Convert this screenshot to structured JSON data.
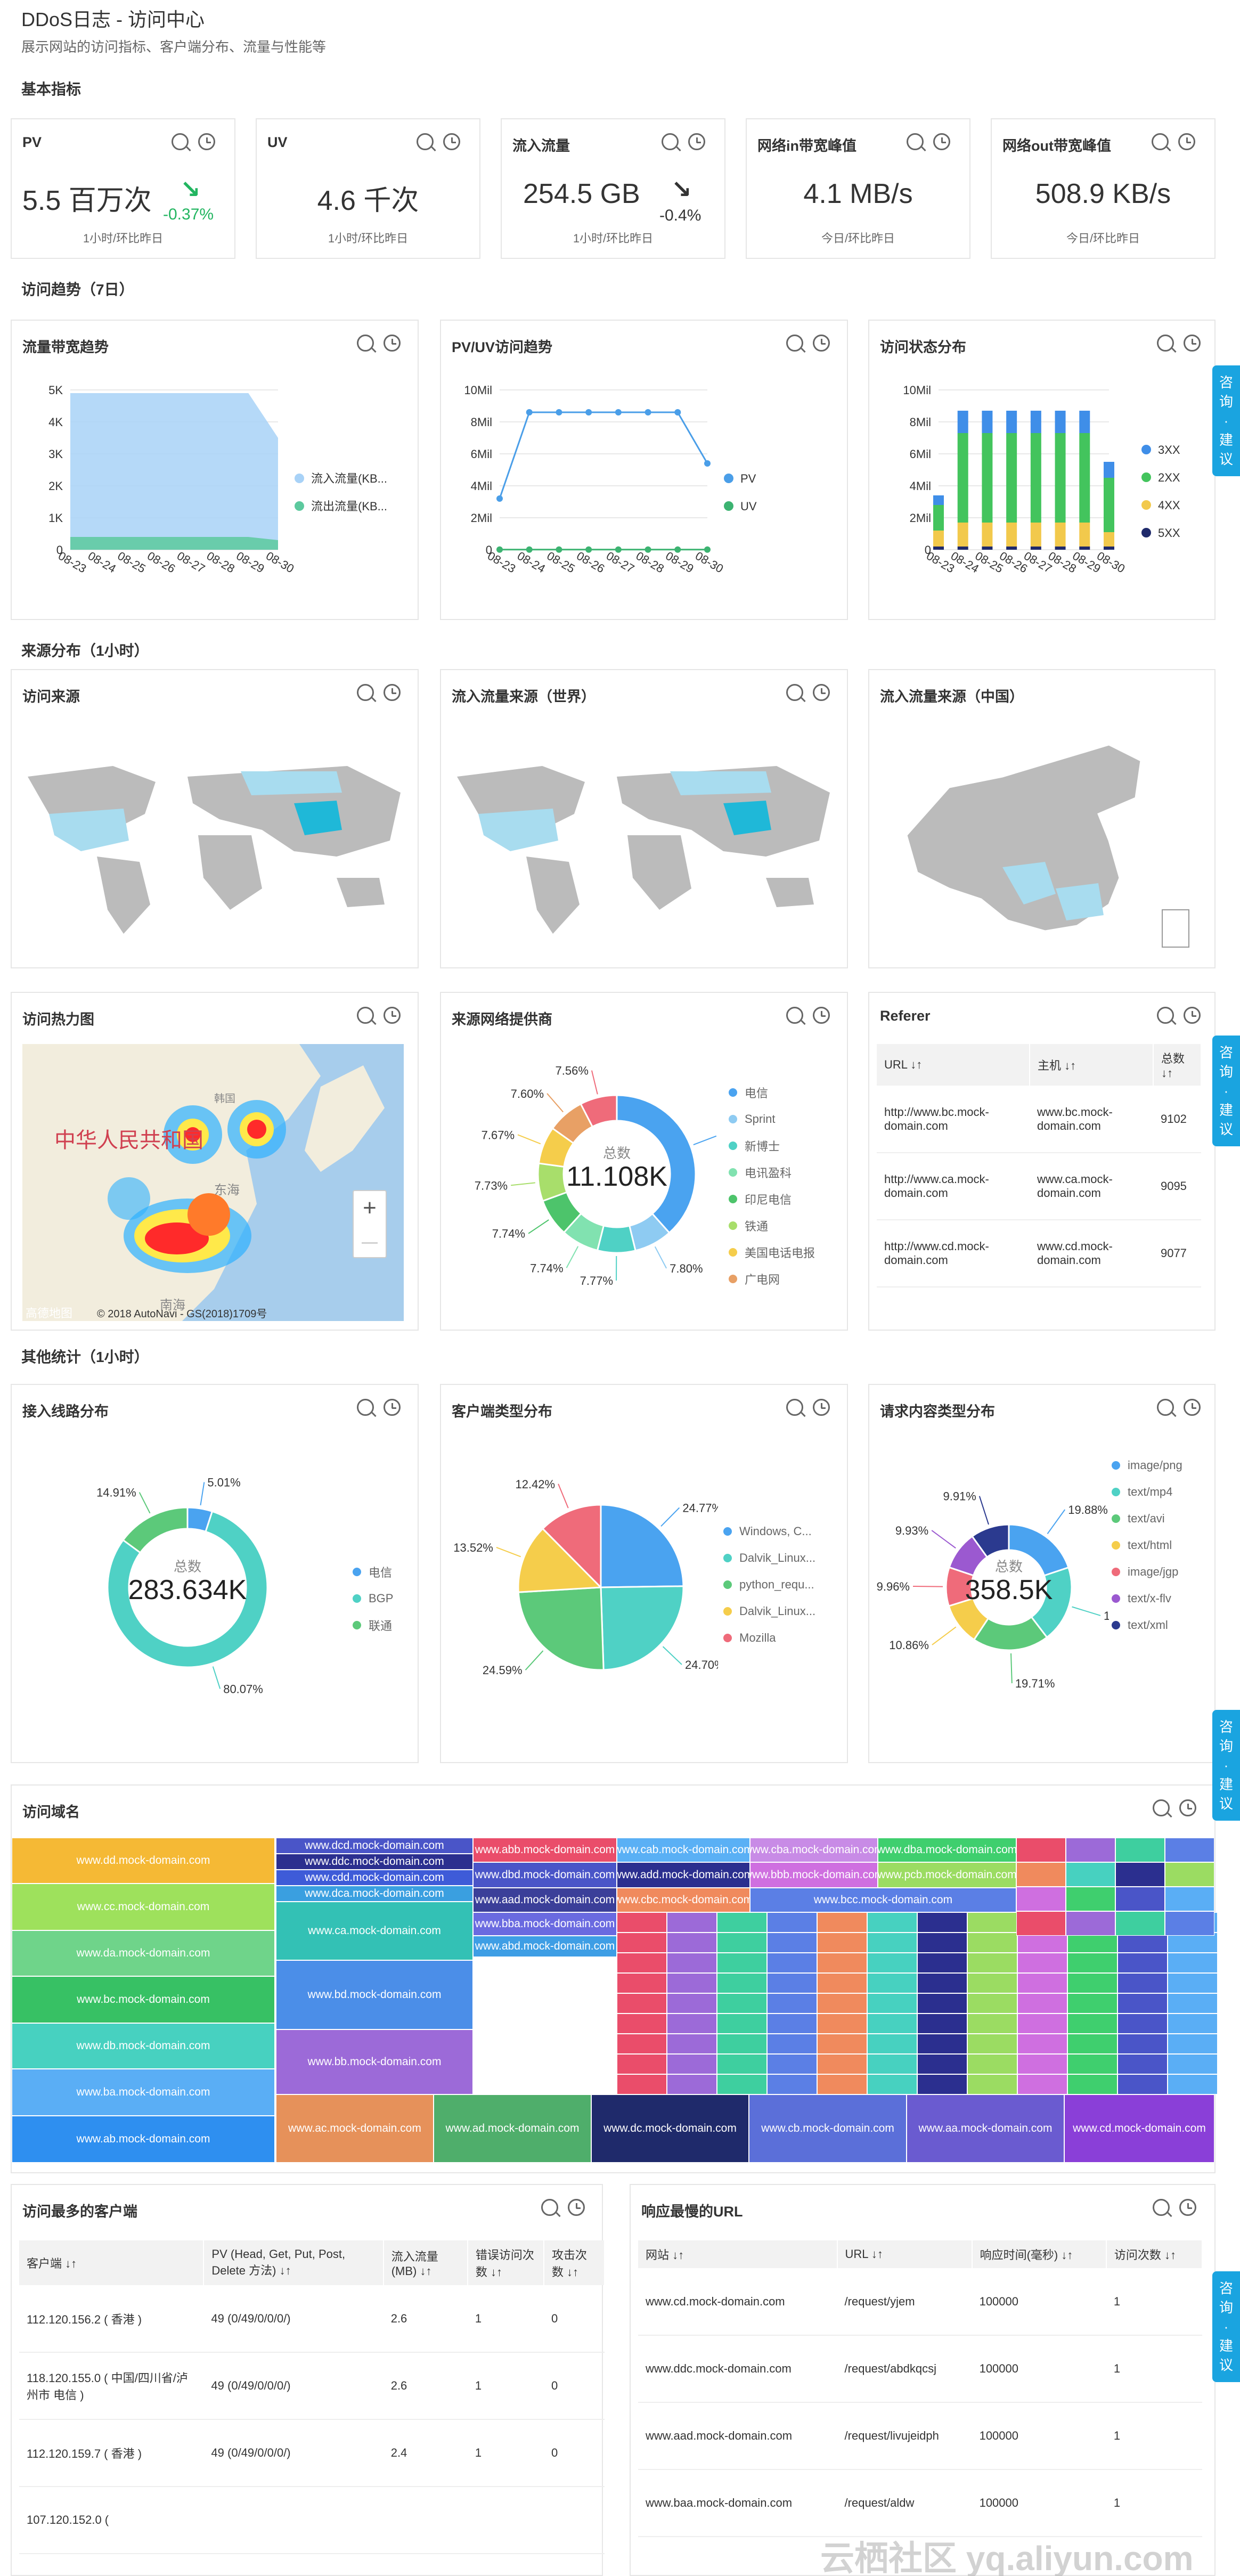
{
  "header": {
    "title": "DDoS日志 - 访问中心",
    "subtitle": "展示网站的访问指标、客户端分布、流量与性能等"
  },
  "sections": {
    "basic": "基本指标",
    "trend": "访问趋势（7日）",
    "source": "来源分布（1小时）",
    "other": "其他统计（1小时）"
  },
  "kpis": [
    {
      "label": "PV",
      "value": "5.5 百万次",
      "change": "-0.37%",
      "trend": "down-green",
      "sub": "1小时/环比昨日"
    },
    {
      "label": "UV",
      "value": "4.6 千次",
      "change": "",
      "sub": "1小时/环比昨日"
    },
    {
      "label": "流入流量",
      "value": "254.5 GB",
      "change": "-0.4%",
      "trend": "down",
      "sub": "1小时/环比昨日"
    },
    {
      "label": "网络in带宽峰值",
      "value": "4.1 MB/s",
      "change": "",
      "sub": "今日/环比昨日"
    },
    {
      "label": "网络out带宽峰值",
      "value": "508.9 KB/s",
      "change": "",
      "sub": "今日/环比昨日"
    }
  ],
  "cards": {
    "bandwidth": "流量带宽趋势",
    "pvuv": "PV/UV访问趋势",
    "status": "访问状态分布",
    "visit_source": "访问来源",
    "inflow_world": "流入流量来源（世界）",
    "inflow_china": "流入流量来源（中国）",
    "heatmap": "访问热力图",
    "isp": "来源网络提供商",
    "referer": "Referer",
    "line": "接入线路分布",
    "client_type": "客户端类型分布",
    "content_type": "请求内容类型分布",
    "domain": "访问域名",
    "top_clients": "访问最多的客户端",
    "slow_url": "响应最慢的URL"
  },
  "side_tab": "咨询·建议",
  "map": {
    "heat_label": "中华人民共和国",
    "sea1": "东海",
    "sea2": "南海",
    "north": "韩国",
    "copyright": "© 2018 AutoNavi - GS(2018)1709号",
    "logo": "高德地图",
    "zoom_in": "+",
    "zoom_out": "—"
  },
  "chart_data": [
    {
      "type": "area",
      "title": "流量带宽趋势",
      "categories": [
        "08-23",
        "08-24",
        "08-25",
        "08-26",
        "08-27",
        "08-28",
        "08-29",
        "08-30"
      ],
      "yticks": [
        "0",
        "1K",
        "2K",
        "3K",
        "4K",
        "5K"
      ],
      "ylim": [
        0,
        5000
      ],
      "series": [
        {
          "name": "流入流量(KB...",
          "color": "#a8d2f7",
          "values": [
            4900,
            4900,
            4900,
            4900,
            4900,
            4900,
            4900,
            3500
          ]
        },
        {
          "name": "流出流量(KB...",
          "color": "#5cc99e",
          "values": [
            400,
            400,
            400,
            400,
            400,
            400,
            400,
            300
          ]
        }
      ]
    },
    {
      "type": "line",
      "title": "PV/UV访问趋势",
      "categories": [
        "08-23",
        "08-24",
        "08-25",
        "08-26",
        "08-27",
        "08-28",
        "08-29",
        "08-30"
      ],
      "yticks": [
        "0",
        "2Mil",
        "4Mil",
        "6Mil",
        "8Mil",
        "10Mil"
      ],
      "ylim": [
        0,
        10000000
      ],
      "series": [
        {
          "name": "PV",
          "color": "#4a9ee8",
          "values": [
            3200000,
            8600000,
            8600000,
            8600000,
            8600000,
            8600000,
            8600000,
            5400000
          ]
        },
        {
          "name": "UV",
          "color": "#3cb371",
          "values": [
            10000,
            10000,
            10000,
            10000,
            10000,
            10000,
            10000,
            10000
          ]
        }
      ]
    },
    {
      "type": "bar",
      "title": "访问状态分布",
      "categories": [
        "08-23",
        "08-24",
        "08-25",
        "08-26",
        "08-27",
        "08-28",
        "08-29",
        "08-30"
      ],
      "yticks": [
        "0",
        "2Mil",
        "4Mil",
        "6Mil",
        "8Mil",
        "10Mil"
      ],
      "ylim": [
        0,
        10000000
      ],
      "series": [
        {
          "name": "3XX",
          "color": "#3f8ee8",
          "values": [
            600000,
            1400000,
            1400000,
            1400000,
            1400000,
            1400000,
            1400000,
            1000000
          ]
        },
        {
          "name": "2XX",
          "color": "#43c45d",
          "values": [
            1600000,
            5600000,
            5600000,
            5600000,
            5600000,
            5600000,
            5600000,
            3400000
          ]
        },
        {
          "name": "4XX",
          "color": "#f2c94c",
          "values": [
            1000000,
            1500000,
            1500000,
            1500000,
            1500000,
            1500000,
            1500000,
            900000
          ]
        },
        {
          "name": "5XX",
          "color": "#1f2a6b",
          "values": [
            200000,
            200000,
            200000,
            200000,
            200000,
            200000,
            200000,
            200000
          ]
        }
      ]
    },
    {
      "type": "pie",
      "title": "来源网络提供商",
      "center_label": "总数",
      "center_value": "11.108K",
      "slices": [
        {
          "name": "电信",
          "value": 38.39,
          "color": "#4aa3f0"
        },
        {
          "name": "Sprint",
          "value": 7.8,
          "color": "#8ecbf2"
        },
        {
          "name": "新博士",
          "value": 7.77,
          "color": "#4fd1c5"
        },
        {
          "name": "电讯盈科",
          "value": 7.74,
          "color": "#81e2b0"
        },
        {
          "name": "印尼电信",
          "value": 7.74,
          "color": "#4dc46b"
        },
        {
          "name": "铁通",
          "value": 7.73,
          "color": "#a8de6b"
        },
        {
          "name": "美国电话电报",
          "value": 7.67,
          "color": "#f5cd4b"
        },
        {
          "name": "广电网",
          "value": 7.6,
          "color": "#e8a065"
        },
        {
          "name": "其他",
          "value": 7.56,
          "color": "#ef6b7a"
        }
      ],
      "labels": [
        "38.39%",
        "7.80%",
        "7.77%",
        "7.74%",
        "7.74%",
        "7.73%",
        "7.67%",
        "7.60%",
        "7.56%"
      ]
    },
    {
      "type": "pie",
      "title": "接入线路分布",
      "center_label": "总数",
      "center_value": "283.634K",
      "slices": [
        {
          "name": "电信",
          "value": 5.01,
          "color": "#4aa3f0"
        },
        {
          "name": "BGP",
          "value": 80.07,
          "color": "#4fd1c5"
        },
        {
          "name": "联通",
          "value": 14.91,
          "color": "#5cc97a"
        }
      ],
      "labels": [
        "5.01%",
        "80.07%",
        "14.91%"
      ]
    },
    {
      "type": "pie",
      "title": "客户端类型分布",
      "slices": [
        {
          "name": "Windows, C...",
          "value": 24.77,
          "color": "#4aa3f0"
        },
        {
          "name": "Dalvik_Linux...",
          "value": 24.7,
          "color": "#4fd1c5"
        },
        {
          "name": "python_requ...",
          "value": 24.59,
          "color": "#5cc97a"
        },
        {
          "name": "Dalvik_Linux...",
          "value": 13.52,
          "color": "#f5cd4b"
        },
        {
          "name": "Mozilla",
          "value": 12.42,
          "color": "#ef6b7a"
        }
      ],
      "labels": [
        "24.77%",
        "24.70%",
        "24.59%",
        "13.52%",
        "12.42%"
      ]
    },
    {
      "type": "pie",
      "title": "请求内容类型分布",
      "center_label": "总数",
      "center_value": "358.5K",
      "slices": [
        {
          "name": "image/png",
          "value": 19.88,
          "color": "#4aa3f0"
        },
        {
          "name": "text/mp4",
          "value": 19.75,
          "color": "#4fd1c5"
        },
        {
          "name": "text/avi",
          "value": 19.71,
          "color": "#5cc97a"
        },
        {
          "name": "text/html",
          "value": 10.86,
          "color": "#f5cd4b"
        },
        {
          "name": "image/jgp",
          "value": 9.96,
          "color": "#ef6b7a"
        },
        {
          "name": "text/x-flv",
          "value": 9.93,
          "color": "#9b59d0"
        },
        {
          "name": "text/xml",
          "value": 9.91,
          "color": "#2b3a8f"
        }
      ],
      "labels": [
        "19.88%",
        "19.75%",
        "19.71%",
        "10.86%",
        "9.96%",
        "9.93%",
        "9.91%"
      ]
    }
  ],
  "treemap": [
    {
      "t": "www.dd.mock-domain.com",
      "c": "#f5b935"
    },
    {
      "t": "www.cc.mock-domain.com",
      "c": "#9ee15c"
    },
    {
      "t": "www.da.mock-domain.com",
      "c": "#6fd48a"
    },
    {
      "t": "www.bc.mock-domain.com",
      "c": "#37c164"
    },
    {
      "t": "www.db.mock-domain.com",
      "c": "#47d1c0"
    },
    {
      "t": "www.ba.mock-domain.com",
      "c": "#5aaef5"
    },
    {
      "t": "www.ab.mock-domain.com",
      "c": "#2e8ff0"
    },
    {
      "t": "www.dcd.mock-domain.com",
      "c": "#4a55c8"
    },
    {
      "t": "www.ddc.mock-domain.com",
      "c": "#2b2f8f"
    },
    {
      "t": "www.cdd.mock-domain.com",
      "c": "#3e5bd8"
    },
    {
      "t": "www.dca.mock-domain.com",
      "c": "#3a9fe0"
    },
    {
      "t": "www.ca.mock-domain.com",
      "c": "#33c1b5"
    },
    {
      "t": "www.bd.mock-domain.com",
      "c": "#4b8ee8"
    },
    {
      "t": "www.bb.mock-domain.com",
      "c": "#9c6ad8"
    },
    {
      "t": "www.abb.mock-domain.com",
      "c": "#ea4d6a"
    },
    {
      "t": "www.dbd.mock-domain.com",
      "c": "#4a55c8"
    },
    {
      "t": "www.aad.mock-domain.com",
      "c": "#3b3f99"
    },
    {
      "t": "www.bba.mock-domain.com",
      "c": "#6a6ae0"
    },
    {
      "t": "www.abd.mock-domain.com",
      "c": "#3e9ee5"
    },
    {
      "t": "www.cab.mock-domain.com",
      "c": "#5ab0f5"
    },
    {
      "t": "www.add.mock-domain.com",
      "c": "#2b2f8f"
    },
    {
      "t": "www.cbc.mock-domain.com",
      "c": "#f08a5d"
    },
    {
      "t": "www.cbb.mock-domain.com",
      "c": "#3ecf9f"
    },
    {
      "t": "www.cba.mock-domain.com",
      "c": "#c88be6"
    },
    {
      "t": "www.bbb.mock-domain.com",
      "c": "#cf6fe0"
    },
    {
      "t": "www.dba.mock-domain.com",
      "c": "#3fcf6e"
    },
    {
      "t": "www.pcb.mock-domain.com",
      "c": "#9bdc62"
    },
    {
      "t": "www.bcc.mock-domain.com",
      "c": "#5b7fe5"
    },
    {
      "t": "www.ac.mock-domain.com",
      "c": "#e6915a"
    },
    {
      "t": "www.ad.mock-domain.com",
      "c": "#4fae6b"
    },
    {
      "t": "www.dc.mock-domain.com",
      "c": "#1f2a6b"
    },
    {
      "t": "www.cb.mock-domain.com",
      "c": "#5b6fd9"
    },
    {
      "t": "www.aa.mock-domain.com",
      "c": "#6a5bd0"
    },
    {
      "t": "www.cd.mock-domain.com",
      "c": "#8a3fd8"
    }
  ],
  "referer": {
    "headers": [
      "URL",
      "主机",
      "总数"
    ],
    "rows": [
      [
        "http://www.bc.mock-domain.com",
        "www.bc.mock-domain.com",
        "9102"
      ],
      [
        "http://www.ca.mock-domain.com",
        "www.ca.mock-domain.com",
        "9095"
      ],
      [
        "http://www.cd.mock-domain.com",
        "www.cd.mock-domain.com",
        "9077"
      ]
    ]
  },
  "clients": {
    "headers": [
      "客户端",
      "PV (Head, Get, Put, Post, Delete 方法)",
      "流入流量 (MB)",
      "错误访问次数",
      "攻击次数"
    ],
    "rows": [
      [
        "112.120.156.2 ( 香港 )",
        "49 (0/49/0/0/0/)",
        "2.6",
        "1",
        "0"
      ],
      [
        "118.120.155.0 ( 中国/四川省/泸州市 电信 )",
        "49 (0/49/0/0/0/)",
        "2.6",
        "1",
        "0"
      ],
      [
        "112.120.159.7 ( 香港 )",
        "49 (0/49/0/0/0/)",
        "2.4",
        "1",
        "0"
      ],
      [
        "107.120.152.0 (",
        "",
        "",
        "",
        ""
      ]
    ]
  },
  "slow": {
    "headers": [
      "网站",
      "URL",
      "响应时间(毫秒)",
      "访问次数"
    ],
    "rows": [
      [
        "www.cd.mock-domain.com",
        "/request/yjem",
        "100000",
        "1"
      ],
      [
        "www.ddc.mock-domain.com",
        "/request/abdkqcsj",
        "100000",
        "1"
      ],
      [
        "www.aad.mock-domain.com",
        "/request/livujeidph",
        "100000",
        "1"
      ],
      [
        "www.baa.mock-domain.com",
        "/request/aldw",
        "100000",
        "1"
      ]
    ]
  },
  "watermark": "云栖社区 yq.aliyun.com"
}
